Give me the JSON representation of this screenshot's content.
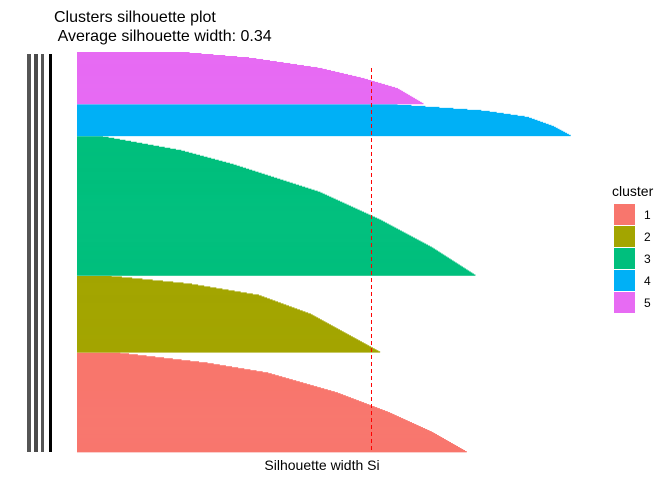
{
  "chart_data": {
    "type": "bar",
    "title": "Clusters silhouette plot",
    "subtitle": " Average silhouette width: 0.34",
    "xlabel": "Silhouette width Si",
    "ylabel": "",
    "average_silhouette_width": 0.34,
    "x_range": [
      0,
      0.65
    ],
    "grid": false,
    "legend": {
      "title": "cluster",
      "placement": "right",
      "entries": [
        "1",
        "2",
        "3",
        "4",
        "5"
      ]
    },
    "series": [
      {
        "name": "1",
        "color": "#F8766D",
        "count": 100,
        "profile": [
          [
            0,
            0.45
          ],
          [
            0.2,
            0.41
          ],
          [
            0.4,
            0.36
          ],
          [
            0.6,
            0.3
          ],
          [
            0.8,
            0.22
          ],
          [
            0.9,
            0.15
          ],
          [
            1.0,
            0.05
          ]
        ]
      },
      {
        "name": "2",
        "color": "#A3A500",
        "count": 77,
        "profile": [
          [
            0,
            0.35
          ],
          [
            0.25,
            0.31
          ],
          [
            0.5,
            0.27
          ],
          [
            0.75,
            0.21
          ],
          [
            0.9,
            0.13
          ],
          [
            1.0,
            0.04
          ]
        ]
      },
      {
        "name": "3",
        "color": "#00BF7D",
        "count": 140,
        "profile": [
          [
            0,
            0.46
          ],
          [
            0.2,
            0.41
          ],
          [
            0.4,
            0.35
          ],
          [
            0.6,
            0.28
          ],
          [
            0.8,
            0.18
          ],
          [
            0.9,
            0.12
          ],
          [
            1.0,
            0.03
          ]
        ]
      },
      {
        "name": "4",
        "color": "#00B0F6",
        "count": 32,
        "profile": [
          [
            0,
            0.57
          ],
          [
            0.3,
            0.55
          ],
          [
            0.6,
            0.52
          ],
          [
            0.8,
            0.47
          ],
          [
            1.0,
            0.37
          ]
        ]
      },
      {
        "name": "5",
        "color": "#E76BF3",
        "count": 52,
        "profile": [
          [
            0,
            0.4
          ],
          [
            0.3,
            0.37
          ],
          [
            0.5,
            0.33
          ],
          [
            0.7,
            0.28
          ],
          [
            0.9,
            0.2
          ],
          [
            1.0,
            0.13
          ]
        ]
      }
    ],
    "reference_line": {
      "x": 0.34,
      "color": "#FF0000",
      "style": "dashed"
    }
  }
}
